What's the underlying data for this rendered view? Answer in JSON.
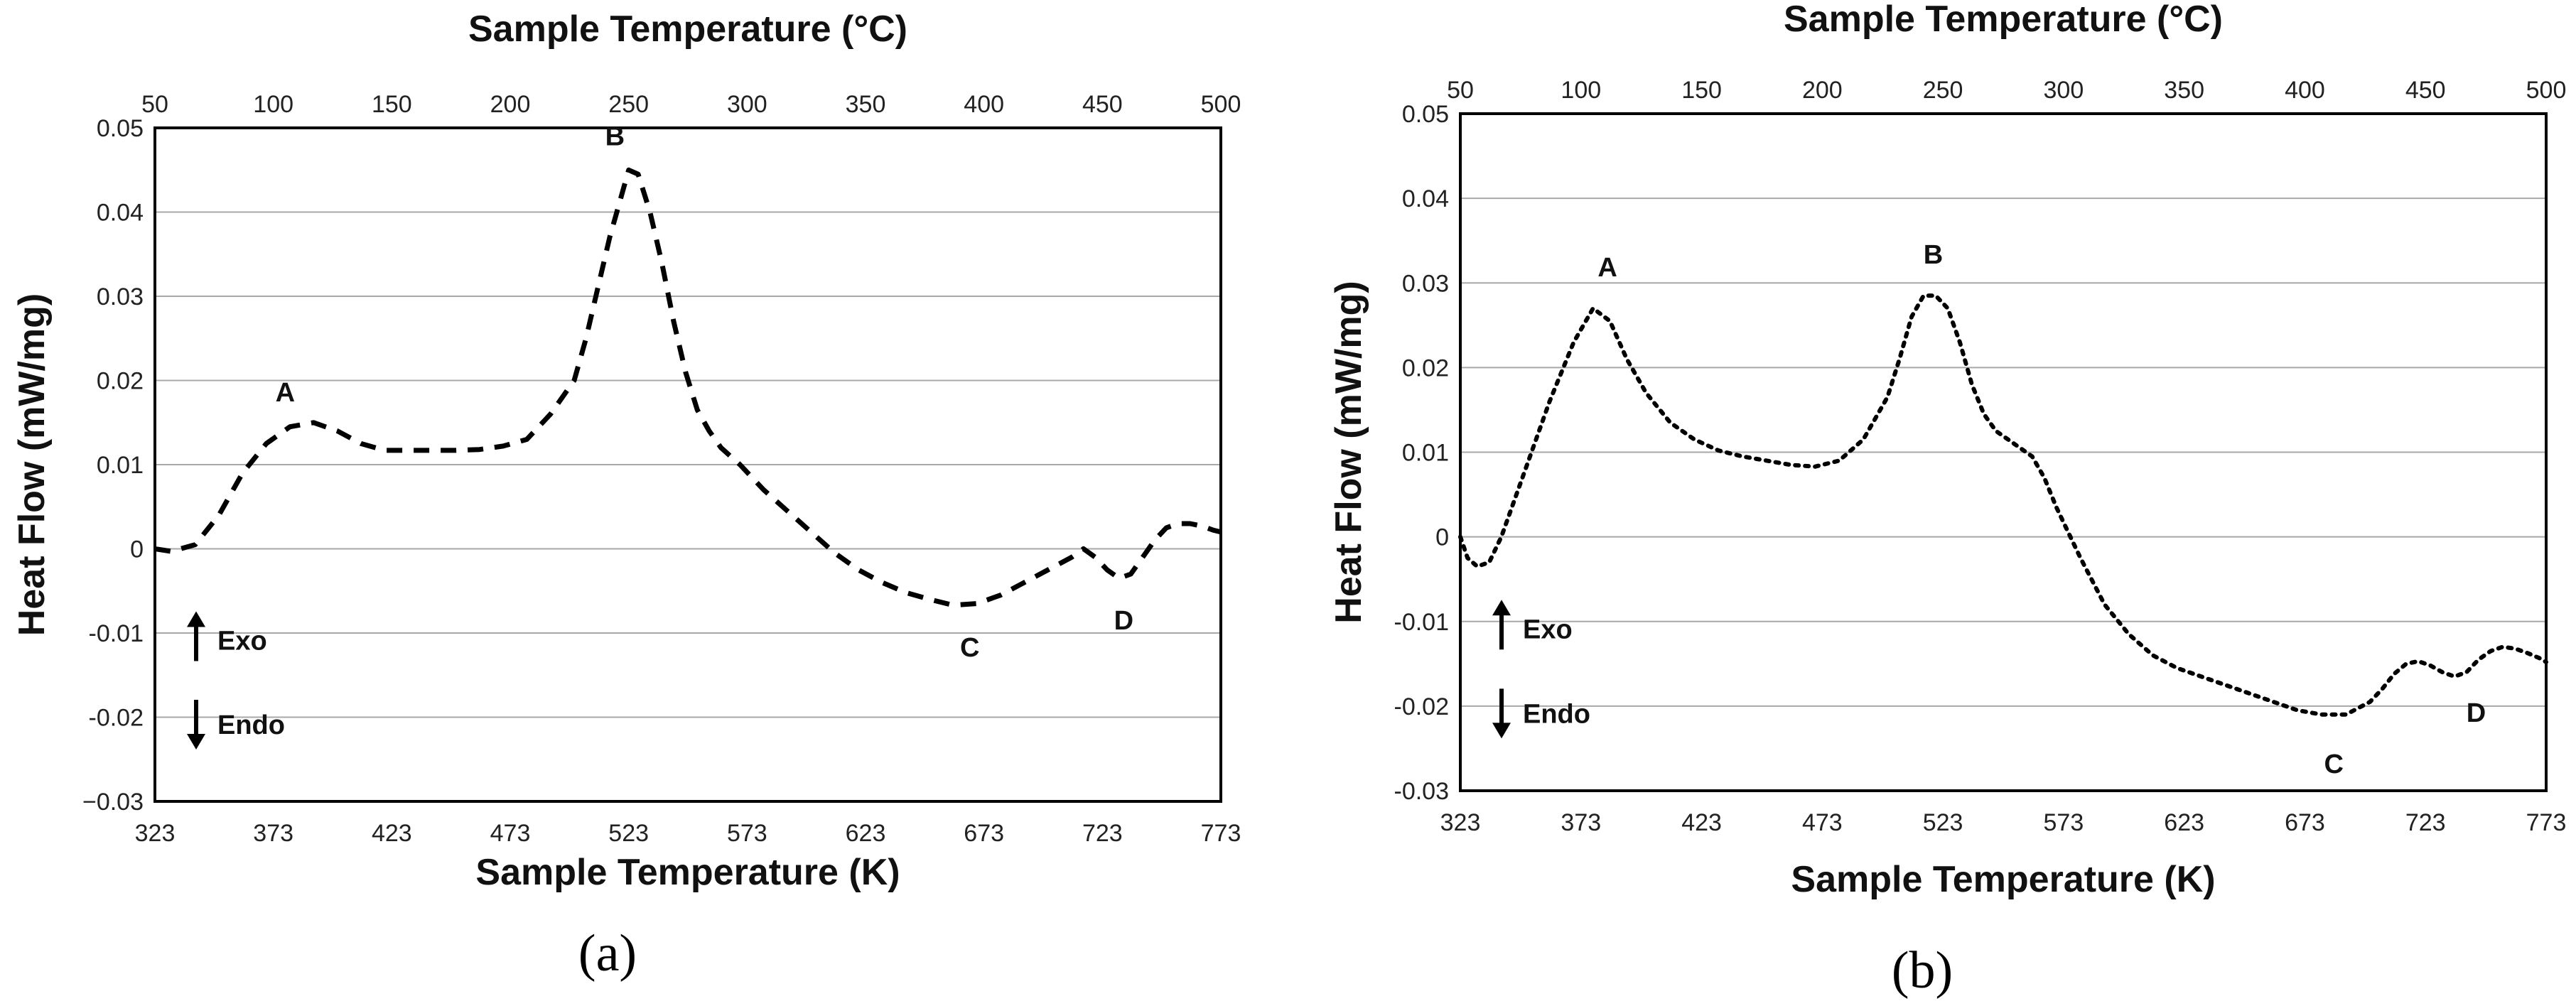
{
  "chart_data": [
    {
      "panel": "(a)",
      "type": "line",
      "line_style": "dashed",
      "title": "",
      "xlabel": "Sample Temperature (K)",
      "x2label": "Sample Temperature (°C)",
      "ylabel": "Heat Flow (mW/mg)",
      "xlim": [
        323,
        773
      ],
      "ylim": [
        -0.03,
        0.05
      ],
      "xticks": [
        "323",
        "373",
        "423",
        "473",
        "523",
        "573",
        "623",
        "673",
        "723",
        "773"
      ],
      "x2ticks": [
        "50",
        "100",
        "150",
        "200",
        "250",
        "300",
        "350",
        "400",
        "450",
        "500"
      ],
      "yticks": [
        "0.05",
        "0.04",
        "0.03",
        "0.02",
        "0.01",
        "0",
        "-0.01",
        "-0.02",
        "−0.03"
      ],
      "grid": true,
      "legend_labels": {
        "exo": "Exo",
        "endo": "Endo"
      },
      "x": [
        323,
        330,
        340,
        350,
        360,
        370,
        380,
        390,
        400,
        410,
        420,
        430,
        440,
        450,
        460,
        470,
        480,
        490,
        500,
        505,
        510,
        515,
        520,
        523,
        527,
        532,
        537,
        542,
        547,
        552,
        557,
        562,
        570,
        580,
        590,
        600,
        610,
        620,
        630,
        640,
        650,
        660,
        670,
        680,
        690,
        700,
        710,
        715,
        720,
        725,
        730,
        735,
        740,
        745,
        750,
        755,
        760,
        765,
        770,
        773
      ],
      "y": [
        0,
        -0.0003,
        0.0005,
        0.004,
        0.009,
        0.0125,
        0.0145,
        0.015,
        0.014,
        0.0125,
        0.0117,
        0.0117,
        0.0117,
        0.0117,
        0.0118,
        0.0122,
        0.013,
        0.016,
        0.02,
        0.025,
        0.031,
        0.037,
        0.042,
        0.045,
        0.0445,
        0.04,
        0.034,
        0.027,
        0.021,
        0.0165,
        0.014,
        0.012,
        0.01,
        0.007,
        0.0045,
        0.002,
        -0.0005,
        -0.0025,
        -0.004,
        -0.0052,
        -0.006,
        -0.0067,
        -0.0065,
        -0.0055,
        -0.004,
        -0.0025,
        -0.001,
        0,
        -0.001,
        -0.0025,
        -0.0035,
        -0.003,
        -0.001,
        0.001,
        0.0025,
        0.003,
        0.003,
        0.0027,
        0.0022,
        0.002
      ],
      "annotations": [
        {
          "label": "A",
          "x": 378,
          "y": 0.015
        },
        {
          "label": "B",
          "x": 519,
          "y": 0.045
        },
        {
          "label": "C",
          "x": 667,
          "y": -0.0067
        },
        {
          "label": "D",
          "x": 732,
          "y": -0.0035
        }
      ]
    },
    {
      "panel": "(b)",
      "type": "line",
      "line_style": "dotted",
      "title": "",
      "xlabel": "Sample Temperature (K)",
      "x2label": "Sample Temperature (°C)",
      "ylabel": "Heat Flow (mW/mg)",
      "xlim": [
        323,
        773
      ],
      "ylim": [
        -0.03,
        0.05
      ],
      "xticks": [
        "323",
        "373",
        "423",
        "473",
        "523",
        "573",
        "623",
        "673",
        "723",
        "773"
      ],
      "x2ticks": [
        "50",
        "100",
        "150",
        "200",
        "250",
        "300",
        "350",
        "400",
        "450",
        "500"
      ],
      "yticks": [
        "0.05",
        "0.04",
        "0.03",
        "0.02",
        "0.01",
        "0",
        "-0.01",
        "-0.02",
        "-0.03"
      ],
      "grid": true,
      "legend_labels": {
        "exo": "Exo",
        "endo": "Endo"
      },
      "x": [
        323,
        326,
        330,
        335,
        340,
        350,
        360,
        370,
        378,
        385,
        392,
        400,
        410,
        420,
        430,
        440,
        450,
        460,
        470,
        480,
        490,
        500,
        505,
        510,
        515,
        520,
        525,
        530,
        535,
        540,
        545,
        550,
        560,
        565,
        570,
        575,
        580,
        590,
        600,
        610,
        620,
        630,
        640,
        650,
        660,
        670,
        680,
        690,
        700,
        705,
        710,
        715,
        720,
        725,
        730,
        735,
        740,
        745,
        750,
        755,
        760,
        765,
        770,
        773
      ],
      "y": [
        0,
        -0.0025,
        -0.0035,
        -0.003,
        0,
        0.008,
        0.016,
        0.023,
        0.027,
        0.0255,
        0.021,
        0.017,
        0.0135,
        0.0115,
        0.0102,
        0.0095,
        0.009,
        0.0085,
        0.0083,
        0.009,
        0.0115,
        0.0165,
        0.021,
        0.026,
        0.0285,
        0.0285,
        0.027,
        0.023,
        0.018,
        0.0145,
        0.0125,
        0.0115,
        0.0095,
        0.007,
        0.0035,
        0.0005,
        -0.0025,
        -0.008,
        -0.0115,
        -0.014,
        -0.0155,
        -0.0165,
        -0.0175,
        -0.0185,
        -0.0195,
        -0.0205,
        -0.021,
        -0.021,
        -0.0195,
        -0.018,
        -0.0162,
        -0.015,
        -0.0147,
        -0.0152,
        -0.016,
        -0.0165,
        -0.016,
        -0.0145,
        -0.0135,
        -0.013,
        -0.0132,
        -0.0137,
        -0.0143,
        -0.0148
      ],
      "annotations": [
        {
          "label": "A",
          "x": 384,
          "y": 0.027
        },
        {
          "label": "B",
          "x": 519,
          "y": 0.0285
        },
        {
          "label": "C",
          "x": 685,
          "y": -0.021
        },
        {
          "label": "D",
          "x": 744,
          "y": -0.016
        }
      ]
    }
  ]
}
